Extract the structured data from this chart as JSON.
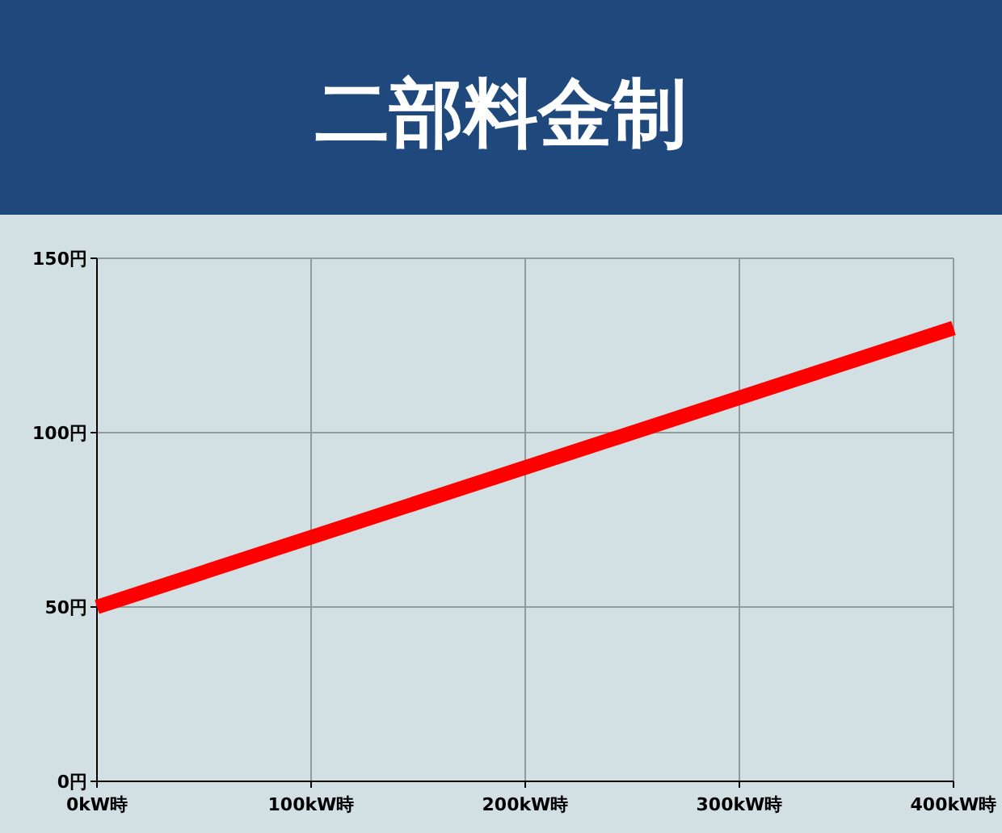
{
  "chart_data": {
    "type": "line",
    "title": "二部料金制",
    "x": [
      0,
      400
    ],
    "series": [
      {
        "color": "#ff0000",
        "values": [
          50,
          130
        ]
      }
    ],
    "xlim": [
      0,
      400
    ],
    "ylim": [
      0,
      150
    ],
    "xticks": [
      {
        "value": 0,
        "label": "0kW時"
      },
      {
        "value": 100,
        "label": "100kW時"
      },
      {
        "value": 200,
        "label": "200kW時"
      },
      {
        "value": 300,
        "label": "300kW時"
      },
      {
        "value": 400,
        "label": "400kW時"
      }
    ],
    "yticks": [
      {
        "value": 0,
        "label": "0円"
      },
      {
        "value": 50,
        "label": "50円"
      },
      {
        "value": 100,
        "label": "100円"
      },
      {
        "value": 150,
        "label": "150円"
      }
    ],
    "grid": true,
    "marker": "none",
    "line_style": "solid"
  }
}
